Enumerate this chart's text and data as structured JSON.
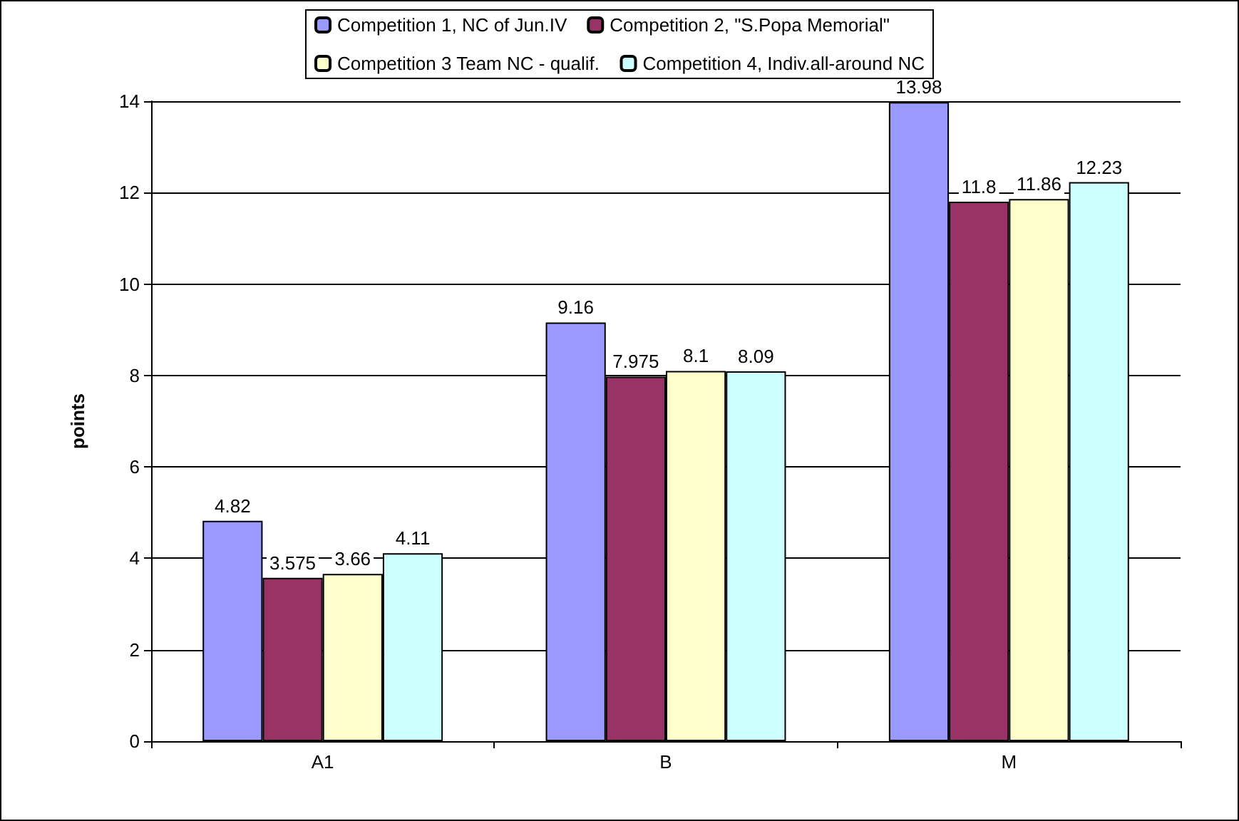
{
  "chart_data": {
    "type": "bar",
    "ylabel": "points",
    "categories": [
      "A1",
      "B",
      "M"
    ],
    "series": [
      {
        "name": "Competition 1, NC of Jun.IV",
        "color": "#9999ff",
        "values": [
          4.82,
          9.16,
          13.98
        ]
      },
      {
        "name": "Competition 2, \"S.Popa Memorial\"",
        "color": "#993366",
        "values": [
          3.575,
          7.975,
          11.8
        ]
      },
      {
        "name": "Competition 3 Team NC - qualif.",
        "color": "#ffffcc",
        "values": [
          3.66,
          8.1,
          11.86
        ]
      },
      {
        "name": "Competition 4, Indiv.all-around NC",
        "color": "#ccffff",
        "values": [
          4.11,
          8.09,
          12.23
        ]
      }
    ],
    "ylim": [
      0,
      14
    ],
    "yticks": [
      0,
      2,
      4,
      6,
      8,
      10,
      12,
      14
    ],
    "grid": "y",
    "legend": "top",
    "data_labels": true
  }
}
